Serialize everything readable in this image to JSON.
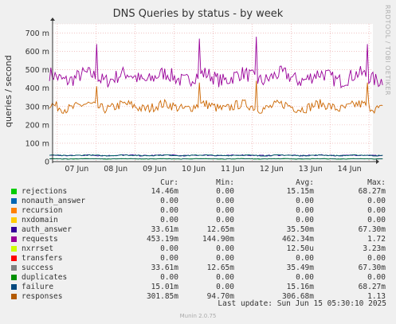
{
  "title": "DNS Queries by status - by week",
  "watermark": "RRDTOOL / TOBI OETIKER",
  "chart_data": {
    "type": "line",
    "title": "DNS Queries by status - by week",
    "ylabel": "queries / second",
    "xlabel": "",
    "ylim": [
      0,
      0.75
    ],
    "y_ticks": [
      0,
      0.1,
      0.2,
      0.3,
      0.4,
      0.5,
      0.6,
      0.7
    ],
    "y_tick_labels": [
      "0",
      "100 m",
      "200 m",
      "300 m",
      "400 m",
      "500 m",
      "600 m",
      "700 m"
    ],
    "x_tick_labels": [
      "07 Jun",
      "08 Jun",
      "09 Jun",
      "10 Jun",
      "11 Jun",
      "12 Jun",
      "13 Jun",
      "14 Jun"
    ],
    "grid": true,
    "series": [
      {
        "name": "requests",
        "color": "#990099",
        "typical": 0.46,
        "min": 0.145,
        "max": 1.72,
        "spikes": [
          [
            0.5,
            0.64
          ],
          [
            3.15,
            0.67
          ],
          [
            4.6,
            0.68
          ],
          [
            7.45,
            0.64
          ]
        ]
      },
      {
        "name": "responses",
        "color": "#cc6600",
        "typical": 0.3,
        "min": 0.095,
        "max": 1.13,
        "spikes": [
          [
            0.5,
            0.41
          ],
          [
            3.15,
            0.43
          ],
          [
            4.6,
            0.44
          ],
          [
            7.45,
            0.43
          ]
        ]
      },
      {
        "name": "auth_answer",
        "color": "#330099",
        "typical": 0.034,
        "min": 0.013,
        "max": 0.067
      },
      {
        "name": "success",
        "color": "#006666",
        "typical": 0.034,
        "min": 0.013,
        "max": 0.067
      },
      {
        "name": "rejections",
        "color": "#00cc00",
        "typical": 0.015,
        "min": 0,
        "max": 0.068
      },
      {
        "name": "failure",
        "color": "#005050",
        "typical": 0.015,
        "min": 0,
        "max": 0.068
      }
    ]
  },
  "legend": {
    "headers": [
      "Cur:",
      "Min:",
      "Avg:",
      "Max:"
    ],
    "rows": [
      {
        "name": "rejections",
        "color": "#00cc00",
        "cur": "14.46m",
        "min": "0.00",
        "avg": "15.15m",
        "max": "68.27m"
      },
      {
        "name": "nonauth_answer",
        "color": "#0066b3",
        "cur": "0.00",
        "min": "0.00",
        "avg": "0.00",
        "max": "0.00"
      },
      {
        "name": "recursion",
        "color": "#ff8000",
        "cur": "0.00",
        "min": "0.00",
        "avg": "0.00",
        "max": "0.00"
      },
      {
        "name": "nxdomain",
        "color": "#ffcc00",
        "cur": "0.00",
        "min": "0.00",
        "avg": "0.00",
        "max": "0.00"
      },
      {
        "name": "auth_answer",
        "color": "#330099",
        "cur": "33.61m",
        "min": "12.65m",
        "avg": "35.50m",
        "max": "67.30m"
      },
      {
        "name": "requests",
        "color": "#990099",
        "cur": "453.19m",
        "min": "144.90m",
        "avg": "462.34m",
        "max": "1.72"
      },
      {
        "name": "nxrrset",
        "color": "#ccff00",
        "cur": "0.00",
        "min": "0.00",
        "avg": "12.50u",
        "max": "3.23m"
      },
      {
        "name": "transfers",
        "color": "#ff0000",
        "cur": "0.00",
        "min": "0.00",
        "avg": "0.00",
        "max": "0.00"
      },
      {
        "name": "success",
        "color": "#808080",
        "cur": "33.61m",
        "min": "12.65m",
        "avg": "35.49m",
        "max": "67.30m"
      },
      {
        "name": "duplicates",
        "color": "#008f00",
        "cur": "0.00",
        "min": "0.00",
        "avg": "0.00",
        "max": "0.00"
      },
      {
        "name": "failure",
        "color": "#00487d",
        "cur": "15.01m",
        "min": "0.00",
        "avg": "15.16m",
        "max": "68.27m"
      },
      {
        "name": "responses",
        "color": "#b35a00",
        "cur": "301.85m",
        "min": "94.70m",
        "avg": "306.68m",
        "max": "1.13"
      }
    ]
  },
  "last_update": "Last update: Sun Jun 15 05:30:10 2025",
  "footer": "Munin 2.0.75"
}
